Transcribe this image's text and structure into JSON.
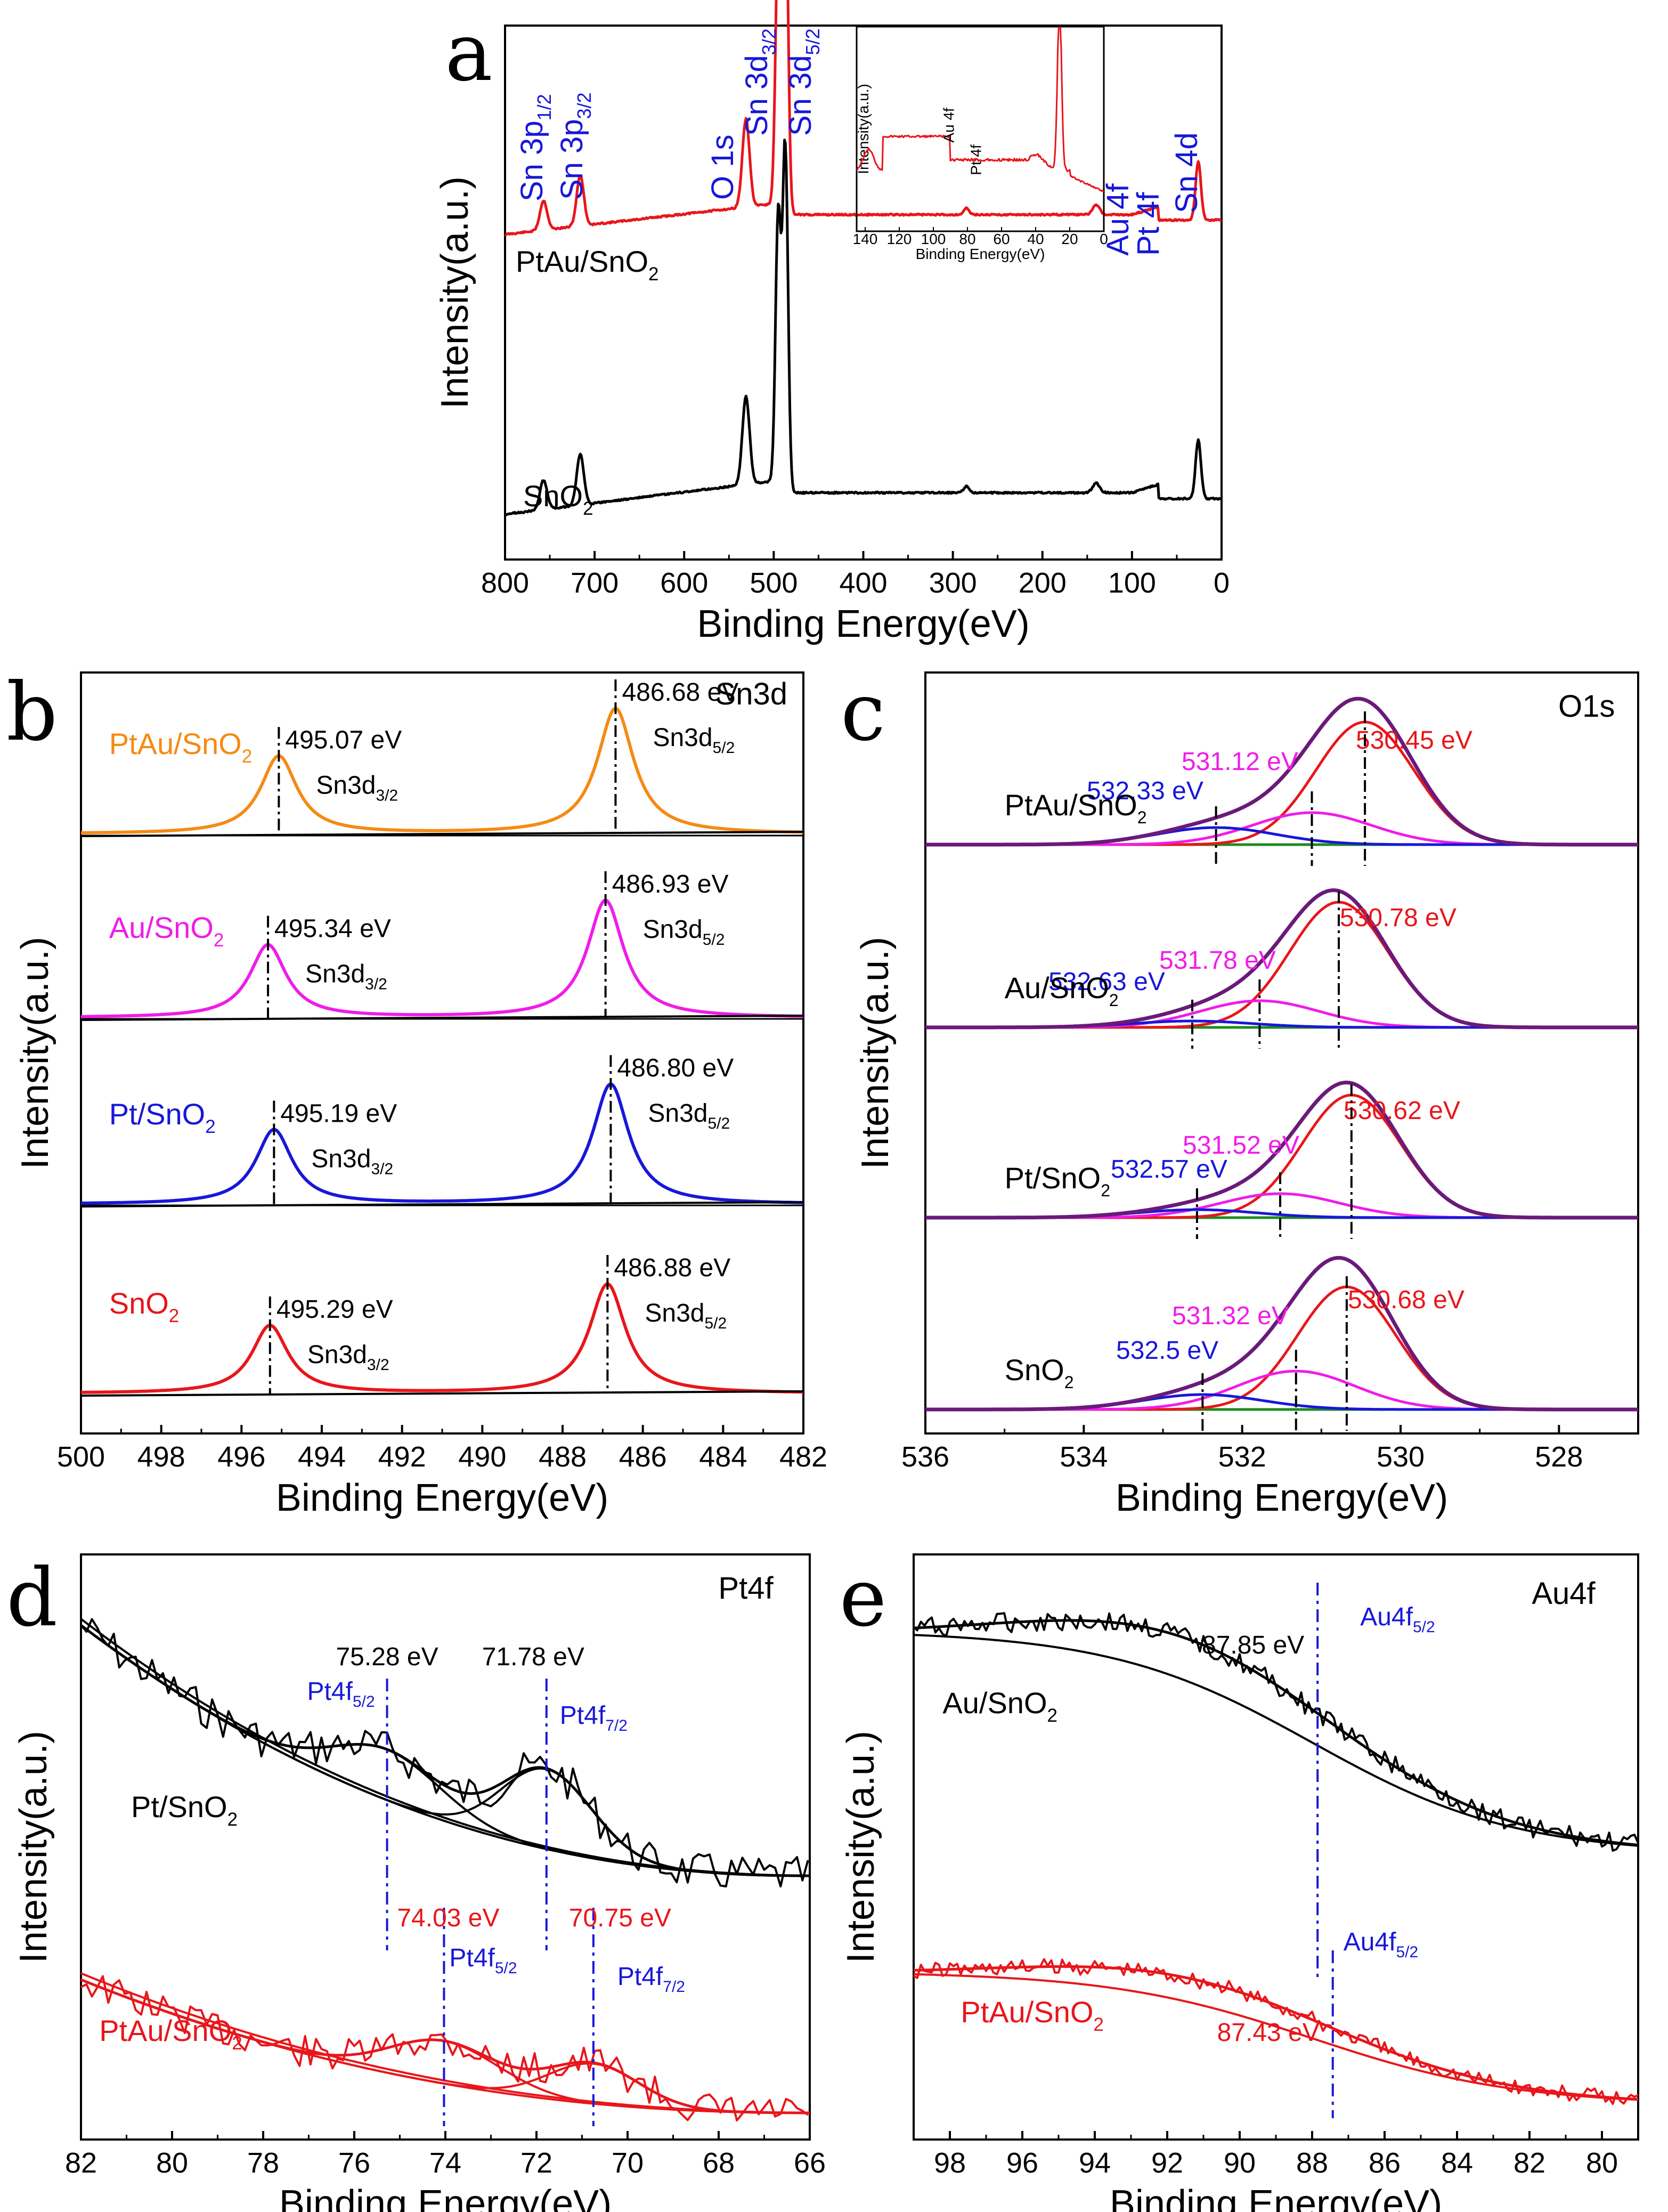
{
  "colors": {
    "black": "#000000",
    "red": "#e8161b",
    "blue": "#1717d9",
    "magenta": "#f01ce8",
    "orange": "#f58a15",
    "purple": "#6a1a7a",
    "green": "#1f8a1f",
    "dark_red": "#c4161c"
  },
  "chart_data": [
    {
      "panel": "a",
      "type": "line",
      "title": "",
      "xlabel": "Binding Energy(eV)",
      "ylabel": "Intensity(a.u.)",
      "xlim": [
        800,
        0
      ],
      "xticks": [
        800,
        700,
        600,
        500,
        400,
        300,
        200,
        100,
        0
      ],
      "series": [
        {
          "name": "PtAu/SnO2",
          "label_main": "PtAu/SnO",
          "label_sub": "2",
          "color": "red",
          "peaks_eV": [
            757,
            716,
            531,
            495,
            487,
            285,
            140,
            88,
            75,
            26
          ]
        },
        {
          "name": "SnO2",
          "label_main": "SnO",
          "label_sub": "2",
          "color": "black",
          "peaks_eV": [
            757,
            716,
            531,
            495,
            487,
            285,
            140,
            88,
            26
          ]
        }
      ],
      "peak_labels": [
        {
          "main": "Sn 3p",
          "sub": "1/2",
          "eV": 757
        },
        {
          "main": "Sn 3p",
          "sub": "3/2",
          "eV": 716
        },
        {
          "main": "O 1s",
          "sub": "",
          "eV": 531
        },
        {
          "main": "Sn 3d",
          "sub": "3/2",
          "eV": 495
        },
        {
          "main": "Sn 3d",
          "sub": "5/2",
          "eV": 487
        },
        {
          "main": "Au 4f",
          "sub": "",
          "eV": 88
        },
        {
          "main": "Pt 4f",
          "sub": "",
          "eV": 72
        },
        {
          "main": "Sn 4d",
          "sub": "",
          "eV": 26
        }
      ],
      "inset": {
        "xlabel": "Binding Energy(eV)",
        "ylabel": "Intensity(a.u.)",
        "xlim": [
          145,
          0
        ],
        "xticks": [
          140,
          120,
          100,
          80,
          60,
          40,
          20,
          0
        ],
        "annotations": [
          {
            "text": "Au 4f",
            "eV": 88
          },
          {
            "text": "Pt 4f",
            "eV": 72
          }
        ]
      }
    },
    {
      "panel": "b",
      "type": "line",
      "xlabel": "Binding Energy(eV)",
      "ylabel": "Intensity(a.u.)",
      "xlim": [
        500,
        482
      ],
      "xticks": [
        500,
        498,
        496,
        494,
        492,
        490,
        488,
        486,
        484,
        482
      ],
      "corner_label": "Sn3d",
      "series": [
        {
          "name": "PtAu/SnO2",
          "label_main": "PtAu/SnO",
          "label_sub": "2",
          "color": "orange",
          "peaks": [
            {
              "eV": 495.07,
              "label": "495.07 eV",
              "assign_main": "Sn3d",
              "assign_sub": "3/2"
            },
            {
              "eV": 486.68,
              "label": "486.68 eV",
              "assign_main": "Sn3d",
              "assign_sub": "5/2"
            }
          ]
        },
        {
          "name": "Au/SnO2",
          "label_main": "Au/SnO",
          "label_sub": "2",
          "color": "magenta",
          "peaks": [
            {
              "eV": 495.34,
              "label": "495.34 eV",
              "assign_main": "Sn3d",
              "assign_sub": "3/2"
            },
            {
              "eV": 486.93,
              "label": "486.93 eV",
              "assign_main": "Sn3d",
              "assign_sub": "5/2"
            }
          ]
        },
        {
          "name": "Pt/SnO2",
          "label_main": "Pt/SnO",
          "label_sub": "2",
          "color": "blue",
          "peaks": [
            {
              "eV": 495.19,
              "label": "495.19 eV",
              "assign_main": "Sn3d",
              "assign_sub": "3/2"
            },
            {
              "eV": 486.8,
              "label": "486.80 eV",
              "assign_main": "Sn3d",
              "assign_sub": "5/2"
            }
          ]
        },
        {
          "name": "SnO2",
          "label_main": "SnO",
          "label_sub": "2",
          "color": "red",
          "peaks": [
            {
              "eV": 495.29,
              "label": "495.29 eV",
              "assign_main": "Sn3d",
              "assign_sub": "3/2"
            },
            {
              "eV": 486.88,
              "label": "486.88 eV",
              "assign_main": "Sn3d",
              "assign_sub": "5/2"
            }
          ]
        }
      ]
    },
    {
      "panel": "c",
      "type": "line",
      "xlabel": "Binding Energy(eV)",
      "ylabel": "Intensity(a.u.)",
      "xlim": [
        536,
        527
      ],
      "xticks": [
        536,
        534,
        532,
        530,
        528
      ],
      "corner_label": "O1s",
      "series": [
        {
          "name": "PtAu/SnO2",
          "label_main": "PtAu/SnO",
          "label_sub": "2",
          "components": [
            {
              "eV": 530.45,
              "label": "530.45 eV",
              "color": "red"
            },
            {
              "eV": 531.12,
              "label": "531.12 eV",
              "color": "magenta"
            },
            {
              "eV": 532.33,
              "label": "532.33 eV",
              "color": "blue"
            }
          ]
        },
        {
          "name": "Au/SnO2",
          "label_main": "Au/SnO",
          "label_sub": "2",
          "components": [
            {
              "eV": 530.78,
              "label": "530.78 eV",
              "color": "red"
            },
            {
              "eV": 531.78,
              "label": "531.78 eV",
              "color": "magenta"
            },
            {
              "eV": 532.63,
              "label": "532.63 eV",
              "color": "blue"
            }
          ]
        },
        {
          "name": "Pt/SnO2",
          "label_main": "Pt/SnO",
          "label_sub": "2",
          "components": [
            {
              "eV": 530.62,
              "label": "530.62 eV",
              "color": "red"
            },
            {
              "eV": 531.52,
              "label": "531.52 eV",
              "color": "magenta"
            },
            {
              "eV": 532.57,
              "label": "532.57 eV",
              "color": "blue"
            }
          ]
        },
        {
          "name": "SnO2",
          "label_main": "SnO",
          "label_sub": "2",
          "components": [
            {
              "eV": 530.68,
              "label": "530.68 eV",
              "color": "red"
            },
            {
              "eV": 531.32,
              "label": "531.32 eV",
              "color": "magenta"
            },
            {
              "eV": 532.5,
              "label": "532.5 eV",
              "color": "blue"
            }
          ]
        }
      ]
    },
    {
      "panel": "d",
      "type": "line",
      "xlabel": "Binding Energy(eV)",
      "ylabel": "Intensity(a.u.)",
      "xlim": [
        82,
        66
      ],
      "xticks": [
        82,
        80,
        78,
        76,
        74,
        72,
        70,
        68,
        66
      ],
      "corner_label": "Pt4f",
      "series": [
        {
          "name": "Pt/SnO2",
          "label_main": "Pt/SnO",
          "label_sub": "2",
          "color": "black",
          "peaks": [
            {
              "eV": 75.28,
              "label": "75.28 eV",
              "assign_main": "Pt4f",
              "assign_sub": "5/2"
            },
            {
              "eV": 71.78,
              "label": "71.78 eV",
              "assign_main": "Pt4f",
              "assign_sub": "7/2"
            }
          ]
        },
        {
          "name": "PtAu/SnO2",
          "label_main": "PtAu/SnO",
          "label_sub": "2",
          "color": "red",
          "peaks": [
            {
              "eV": 74.03,
              "label": "74.03 eV",
              "assign_main": "Pt4f",
              "assign_sub": "5/2"
            },
            {
              "eV": 70.75,
              "label": "70.75 eV",
              "assign_main": "Pt4f",
              "assign_sub": "7/2"
            }
          ]
        }
      ]
    },
    {
      "panel": "e",
      "type": "line",
      "xlabel": "Binding Energy(eV)",
      "ylabel": "Intensity(a.u.)",
      "xlim": [
        99,
        79
      ],
      "xticks": [
        98,
        96,
        94,
        92,
        90,
        88,
        86,
        84,
        82,
        80
      ],
      "corner_label": "Au4f",
      "series": [
        {
          "name": "Au/SnO2",
          "label_main": "Au/SnO",
          "label_sub": "2",
          "color": "black",
          "peaks": [
            {
              "eV": 87.85,
              "label": "87.85 eV",
              "assign_main": "Au4f",
              "assign_sub": "5/2"
            }
          ]
        },
        {
          "name": "PtAu/SnO2",
          "label_main": "PtAu/SnO",
          "label_sub": "2",
          "color": "red",
          "peaks": [
            {
              "eV": 87.43,
              "label": "87.43 eV",
              "assign_main": "Au4f",
              "assign_sub": "5/2"
            }
          ]
        }
      ]
    }
  ]
}
